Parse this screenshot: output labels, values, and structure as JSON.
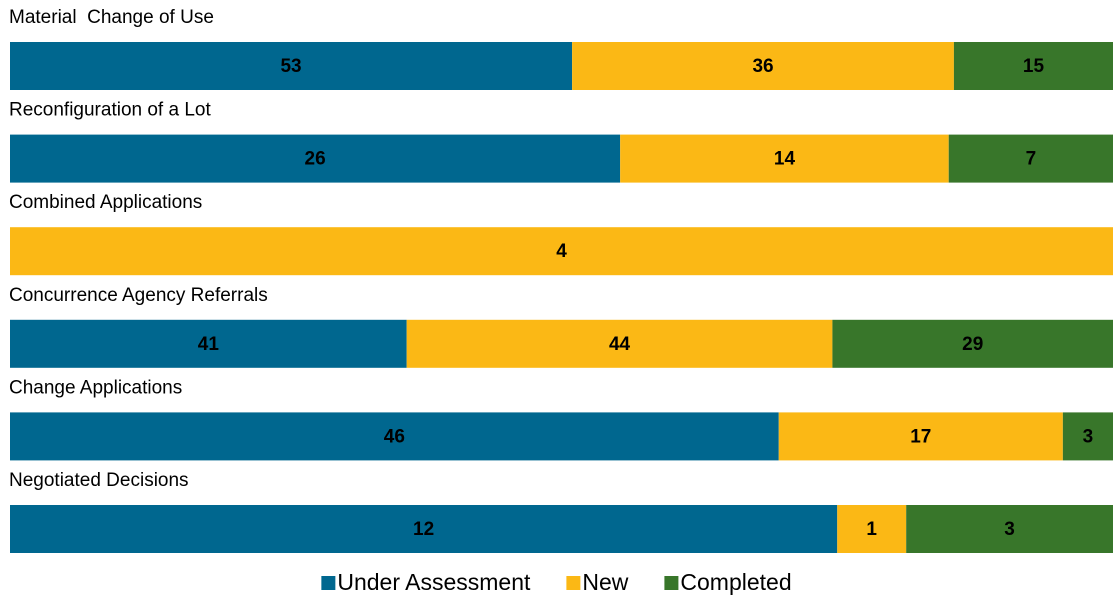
{
  "chart_data": {
    "type": "bar",
    "stacking": "percent",
    "orientation": "horizontal",
    "categories": [
      "Material  Change of Use",
      "Reconfiguration of a Lot",
      "Combined Applications",
      "Concurrence Agency Referrals",
      "Change Applications",
      "Negotiated Decisions"
    ],
    "series": [
      {
        "name": "Under Assessment",
        "color": "#00678f",
        "values": [
          53,
          26,
          null,
          41,
          46,
          12
        ]
      },
      {
        "name": "New",
        "color": "#fbb815",
        "values": [
          36,
          14,
          4,
          44,
          17,
          1
        ]
      },
      {
        "name": "Completed",
        "color": "#38762a",
        "values": [
          15,
          7,
          null,
          29,
          3,
          3
        ]
      }
    ],
    "legend": "bottom"
  }
}
